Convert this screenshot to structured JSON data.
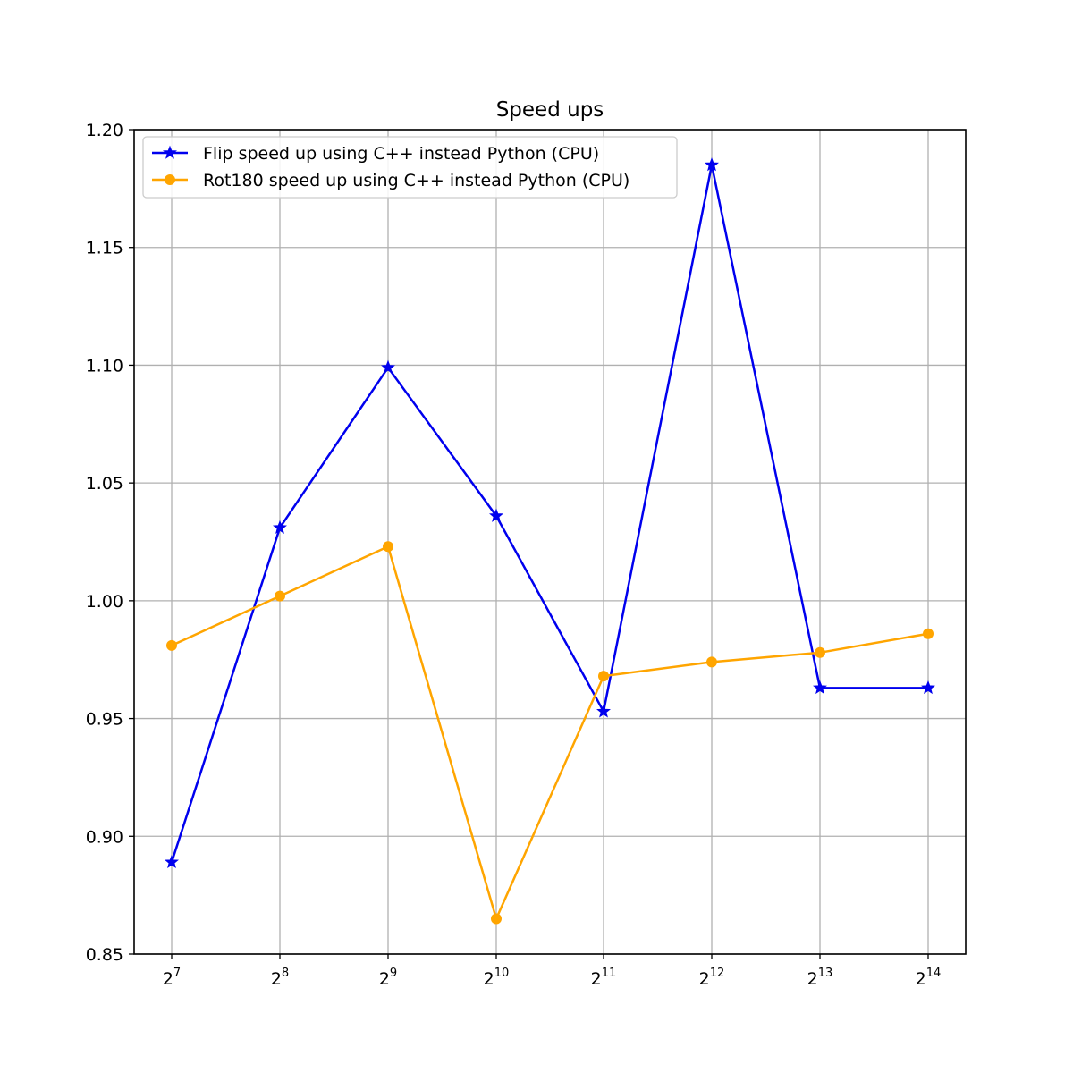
{
  "chart_data": {
    "type": "line",
    "title": "Speed ups",
    "xlabel": "",
    "ylabel": "",
    "x_scale": "log2",
    "x": [
      128,
      256,
      512,
      1024,
      2048,
      4096,
      8192,
      16384
    ],
    "x_tick_labels": [
      {
        "base": "2",
        "exp": "7"
      },
      {
        "base": "2",
        "exp": "8"
      },
      {
        "base": "2",
        "exp": "9"
      },
      {
        "base": "2",
        "exp": "10"
      },
      {
        "base": "2",
        "exp": "11"
      },
      {
        "base": "2",
        "exp": "12"
      },
      {
        "base": "2",
        "exp": "13"
      },
      {
        "base": "2",
        "exp": "14"
      }
    ],
    "ylim": [
      0.85,
      1.2
    ],
    "y_ticks": [
      "0.85",
      "0.90",
      "0.95",
      "1.00",
      "1.05",
      "1.10",
      "1.15",
      "1.20"
    ],
    "grid": true,
    "legend_position": "top-left",
    "series": [
      {
        "name": "Flip speed up using C++ instead Python (CPU)",
        "color": "#0000ee",
        "marker": "star",
        "values": [
          0.889,
          1.031,
          1.099,
          1.036,
          0.953,
          1.185,
          0.963,
          0.963
        ]
      },
      {
        "name": "Rot180 speed up using C++ instead Python (CPU)",
        "color": "#ffa500",
        "marker": "circle",
        "values": [
          0.981,
          1.002,
          1.023,
          0.865,
          0.968,
          0.974,
          0.978,
          0.986
        ]
      }
    ]
  }
}
